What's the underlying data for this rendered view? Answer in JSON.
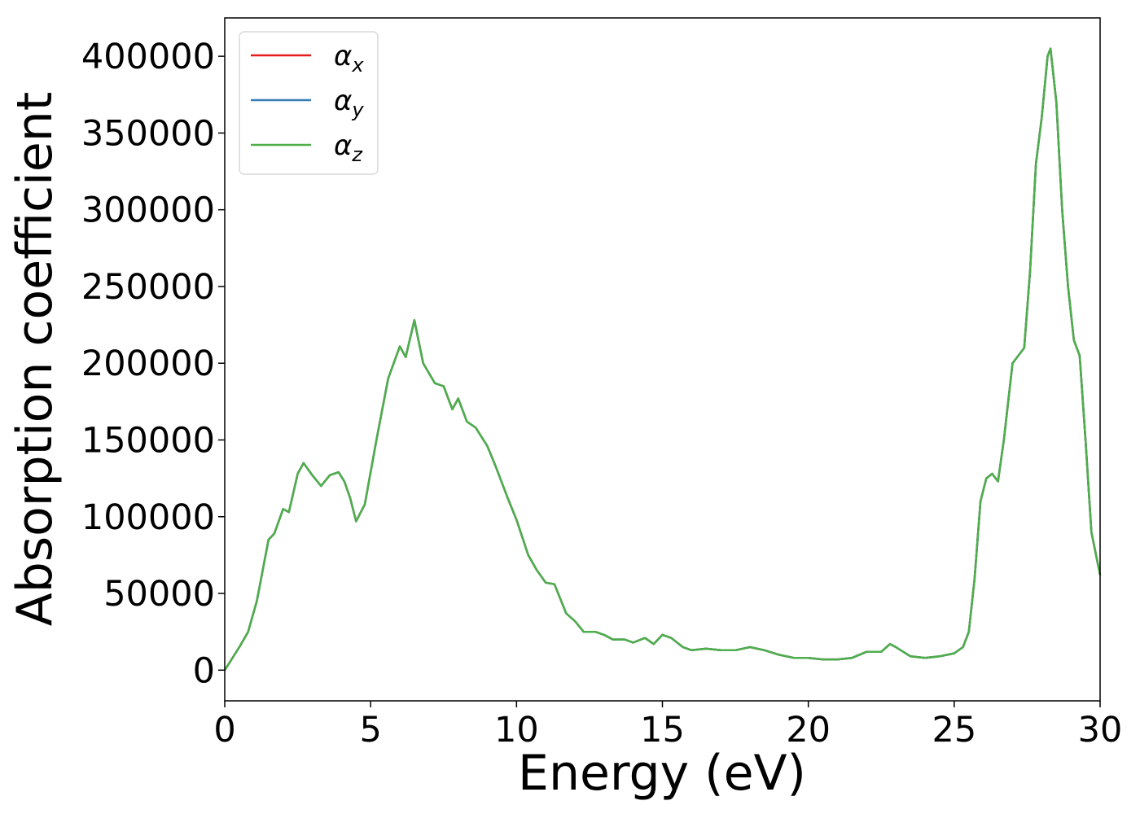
{
  "chart_data": {
    "type": "line",
    "title": "",
    "xlabel": "Energy (eV)",
    "ylabel": "Absorption coefficient",
    "xlim": [
      0,
      30
    ],
    "ylim": [
      -20000,
      425000
    ],
    "xticks": [
      0,
      5,
      10,
      15,
      20,
      25,
      30
    ],
    "xtick_labels": [
      "0",
      "5",
      "10",
      "15",
      "20",
      "25",
      "30"
    ],
    "yticks": [
      0,
      50000,
      100000,
      150000,
      200000,
      250000,
      300000,
      350000,
      400000
    ],
    "ytick_labels": [
      "0",
      "50000",
      "100000",
      "150000",
      "200000",
      "250000",
      "300000",
      "350000",
      "400000"
    ],
    "grid": false,
    "legend_position": "top-left",
    "x": [
      0,
      0.5,
      0.8,
      1.1,
      1.5,
      1.7,
      2.0,
      2.2,
      2.5,
      2.7,
      3.0,
      3.3,
      3.6,
      3.9,
      4.1,
      4.3,
      4.5,
      4.8,
      5.2,
      5.6,
      6.0,
      6.2,
      6.5,
      6.8,
      7.2,
      7.5,
      7.8,
      8.0,
      8.3,
      8.6,
      9.0,
      9.3,
      9.7,
      10.0,
      10.4,
      10.7,
      11.0,
      11.3,
      11.7,
      12.0,
      12.3,
      12.7,
      13.0,
      13.3,
      13.7,
      14.0,
      14.4,
      14.7,
      15.0,
      15.3,
      15.7,
      16.0,
      16.5,
      17.0,
      17.5,
      18.0,
      18.5,
      19.0,
      19.5,
      20.0,
      20.5,
      21.0,
      21.5,
      22.0,
      22.5,
      22.8,
      23.0,
      23.5,
      24.0,
      24.5,
      25.0,
      25.3,
      25.5,
      25.7,
      25.9,
      26.1,
      26.3,
      26.5,
      26.7,
      27.0,
      27.2,
      27.4,
      27.6,
      27.8,
      28.0,
      28.2,
      28.3,
      28.5,
      28.7,
      28.9,
      29.1,
      29.3,
      29.5,
      29.7,
      30.0
    ],
    "series": [
      {
        "name": "αx",
        "color": "#e41a1c",
        "values": [
          0,
          15000,
          25000,
          45000,
          85000,
          89000,
          105000,
          103000,
          128000,
          135000,
          127000,
          120000,
          127000,
          129000,
          123000,
          112000,
          97000,
          108000,
          150000,
          190000,
          211000,
          204000,
          228000,
          200000,
          187000,
          185000,
          170000,
          177000,
          162000,
          158000,
          146000,
          132000,
          112000,
          98000,
          75000,
          65000,
          57000,
          56000,
          37000,
          32000,
          25000,
          25000,
          23000,
          20000,
          20000,
          18000,
          21000,
          17000,
          23000,
          21000,
          15000,
          13000,
          14000,
          13000,
          13000,
          15000,
          13000,
          10000,
          8000,
          8000,
          7000,
          7000,
          8000,
          12000,
          12000,
          17000,
          15000,
          9000,
          8000,
          9000,
          11000,
          15000,
          25000,
          60000,
          110000,
          125000,
          128000,
          123000,
          150000,
          200000,
          205000,
          210000,
          260000,
          330000,
          360000,
          400000,
          405000,
          370000,
          300000,
          250000,
          215000,
          205000,
          150000,
          90000,
          62000
        ]
      },
      {
        "name": "αy",
        "color": "#377eb8",
        "values": [
          0,
          15000,
          25000,
          45000,
          85000,
          89000,
          105000,
          103000,
          128000,
          135000,
          127000,
          120000,
          127000,
          129000,
          123000,
          112000,
          97000,
          108000,
          150000,
          190000,
          211000,
          204000,
          228000,
          200000,
          187000,
          185000,
          170000,
          177000,
          162000,
          158000,
          146000,
          132000,
          112000,
          98000,
          75000,
          65000,
          57000,
          56000,
          37000,
          32000,
          25000,
          25000,
          23000,
          20000,
          20000,
          18000,
          21000,
          17000,
          23000,
          21000,
          15000,
          13000,
          14000,
          13000,
          13000,
          15000,
          13000,
          10000,
          8000,
          8000,
          7000,
          7000,
          8000,
          12000,
          12000,
          17000,
          15000,
          9000,
          8000,
          9000,
          11000,
          15000,
          25000,
          60000,
          110000,
          125000,
          128000,
          123000,
          150000,
          200000,
          205000,
          210000,
          260000,
          330000,
          360000,
          400000,
          405000,
          370000,
          300000,
          250000,
          215000,
          205000,
          150000,
          90000,
          62000
        ]
      },
      {
        "name": "αz",
        "color": "#4daf4a",
        "values": [
          0,
          15000,
          25000,
          45000,
          85000,
          89000,
          105000,
          103000,
          128000,
          135000,
          127000,
          120000,
          127000,
          129000,
          123000,
          112000,
          97000,
          108000,
          150000,
          190000,
          211000,
          204000,
          228000,
          200000,
          187000,
          185000,
          170000,
          177000,
          162000,
          158000,
          146000,
          132000,
          112000,
          98000,
          75000,
          65000,
          57000,
          56000,
          37000,
          32000,
          25000,
          25000,
          23000,
          20000,
          20000,
          18000,
          21000,
          17000,
          23000,
          21000,
          15000,
          13000,
          14000,
          13000,
          13000,
          15000,
          13000,
          10000,
          8000,
          8000,
          7000,
          7000,
          8000,
          12000,
          12000,
          17000,
          15000,
          9000,
          8000,
          9000,
          11000,
          15000,
          25000,
          60000,
          110000,
          125000,
          128000,
          123000,
          150000,
          200000,
          205000,
          210000,
          260000,
          330000,
          360000,
          400000,
          405000,
          370000,
          300000,
          250000,
          215000,
          205000,
          150000,
          90000,
          62000
        ]
      }
    ],
    "legend": [
      {
        "symbol": "α",
        "subscript": "x",
        "color": "#e41a1c"
      },
      {
        "symbol": "α",
        "subscript": "y",
        "color": "#377eb8"
      },
      {
        "symbol": "α",
        "subscript": "z",
        "color": "#4daf4a"
      }
    ]
  }
}
